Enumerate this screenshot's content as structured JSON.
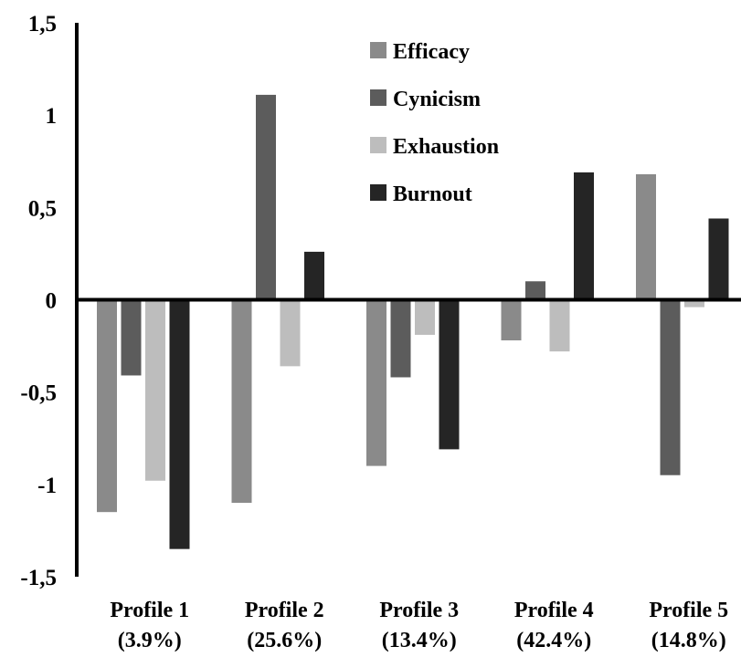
{
  "chart_data": {
    "type": "bar",
    "categories": [
      [
        "Profile 1",
        "(3.9%)"
      ],
      [
        "Profile 2",
        "(25.6%)"
      ],
      [
        "Profile 3",
        "(13.4%)"
      ],
      [
        "Profile 4",
        "(42.4%)"
      ],
      [
        "Profile 5",
        "(14.8%)"
      ]
    ],
    "series": [
      {
        "name": "Efficacy",
        "color": "#8a8a8a",
        "values": [
          -1.15,
          -1.1,
          -0.9,
          -0.22,
          0.68
        ]
      },
      {
        "name": "Cynicism",
        "color": "#5c5c5c",
        "values": [
          -0.41,
          1.11,
          -0.42,
          0.1,
          -0.95
        ]
      },
      {
        "name": "Exhaustion",
        "color": "#bdbdbd",
        "values": [
          -0.98,
          -0.36,
          -0.19,
          -0.28,
          -0.04
        ]
      },
      {
        "name": "Burnout",
        "color": "#252525",
        "values": [
          -1.35,
          0.26,
          -0.81,
          0.69,
          0.44
        ]
      }
    ],
    "ylim": [
      -1.5,
      1.5
    ],
    "yticks": [
      "-1,5",
      "-1",
      "-0,5",
      "0",
      "0,5",
      "1",
      "1,5"
    ],
    "ytick_values": [
      -1.5,
      -1,
      -0.5,
      0,
      0.5,
      1,
      1.5
    ],
    "legend_position": "top-center",
    "grid": false,
    "title": "",
    "xlabel": "",
    "ylabel": ""
  }
}
